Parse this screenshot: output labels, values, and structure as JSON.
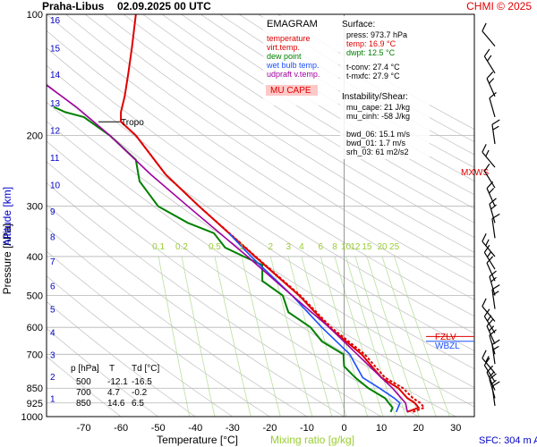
{
  "header": {
    "station": "Praha-Libus",
    "datetime": "02.09.2025 00 UTC",
    "credit": "CHMI © 2025"
  },
  "legend": {
    "title": "EMAGRAM",
    "items": [
      {
        "label": "temperature",
        "color": "#e00000"
      },
      {
        "label": "virt.temp.",
        "color": "#e00000"
      },
      {
        "label": "dew point",
        "color": "#008000"
      },
      {
        "label": "wet bulb temp.",
        "color": "#1e50ff"
      },
      {
        "label": "udpraft v.temp.",
        "color": "#a000a0"
      }
    ],
    "badge": "MU CAPE"
  },
  "surface_info": {
    "title": "Surface:",
    "lines": [
      {
        "text": "press: 973.7 hPa",
        "color": "#000000"
      },
      {
        "text": "temp: 16.9 °C",
        "color": "#e00000"
      },
      {
        "text": "dwpt: 12.5 °C",
        "color": "#008000"
      }
    ],
    "extra": [
      "t-conv: 27.4 °C",
      "t-mxfc: 27.9 °C"
    ]
  },
  "instability": {
    "title": "Instability/Shear:",
    "lines": [
      "mu_cape: 21 J/kg",
      "mu_cinh: -58 J/kg",
      "",
      "bwd_06: 15.1 m/s",
      "bwd_01: 1.7 m/s",
      "srh_03: 61 m2/s2"
    ]
  },
  "levels_table": {
    "headers": [
      "p [hPa]",
      "T",
      "Td [°C]"
    ],
    "rows": [
      [
        "500",
        "-12.1",
        "-16.5"
      ],
      [
        "700",
        "4.7",
        "-0.2"
      ],
      [
        "850",
        "14.6",
        "6.5"
      ]
    ]
  },
  "markers": {
    "tropo": "Tropo",
    "mxws": "MXWS",
    "fzl": "FZLV",
    "wbzl": "WBZL"
  },
  "footer": {
    "sfc": "SFC: 304 m ASL"
  },
  "colors": {
    "temperature": "#e00000",
    "dewpoint": "#008000",
    "wetbulb": "#1e50ff",
    "parcel": "#a000a0",
    "mixing": "#9acd32",
    "altitude": "#0000c8",
    "dry_adiabat": "#c0c0c0"
  },
  "chart_data": {
    "type": "line",
    "ylabel": "Pressure [hPa]",
    "ylabel_alt": "Altitude [km]",
    "xlabel": "Temperature [°C]",
    "xlabel_extra": "Mixing ratio [g/kg]",
    "xlim": [
      -80,
      35
    ],
    "ylim": [
      1000,
      100
    ],
    "y_log": true,
    "x_ticks": [
      -70,
      -60,
      -50,
      -40,
      -30,
      -20,
      -10,
      0,
      10,
      20,
      30
    ],
    "p_ticks": [
      100,
      200,
      300,
      400,
      500,
      600,
      700,
      850,
      925,
      1000
    ],
    "altitude_ticks": [
      {
        "km": 1,
        "p": 900
      },
      {
        "km": 2,
        "p": 795
      },
      {
        "km": 3,
        "p": 701
      },
      {
        "km": 4,
        "p": 616
      },
      {
        "km": 5,
        "p": 540
      },
      {
        "km": 6,
        "p": 472
      },
      {
        "km": 7,
        "p": 411
      },
      {
        "km": 8,
        "p": 357
      },
      {
        "km": 9,
        "p": 308
      },
      {
        "km": 10,
        "p": 265
      },
      {
        "km": 11,
        "p": 227
      },
      {
        "km": 12,
        "p": 194
      },
      {
        "km": 13,
        "p": 166
      },
      {
        "km": 14,
        "p": 141
      },
      {
        "km": 15,
        "p": 121
      },
      {
        "km": 16,
        "p": 103
      }
    ],
    "mixing_ratio_labels": [
      "0.1",
      "0.2",
      "0.5",
      "1",
      "2",
      "3",
      "4",
      "6",
      "8",
      "10",
      "12",
      "15",
      "20",
      "25"
    ],
    "mixing_ratio_values": [
      0.1,
      0.2,
      0.5,
      1,
      2,
      3,
      4,
      6,
      8,
      10,
      12,
      15,
      20,
      25
    ],
    "series": [
      {
        "name": "temperature",
        "key": "temperature",
        "points": [
          [
            973.7,
            16.9
          ],
          [
            950,
            20
          ],
          [
            925,
            19
          ],
          [
            900,
            17
          ],
          [
            850,
            14.6
          ],
          [
            800,
            10
          ],
          [
            700,
            4.7
          ],
          [
            600,
            -4
          ],
          [
            500,
            -12.1
          ],
          [
            400,
            -24
          ],
          [
            300,
            -39
          ],
          [
            250,
            -48
          ],
          [
            200,
            -56
          ],
          [
            185,
            -60
          ],
          [
            175,
            -60
          ],
          [
            160,
            -59
          ],
          [
            140,
            -58
          ],
          [
            120,
            -57
          ],
          [
            100,
            -56
          ]
        ]
      },
      {
        "name": "virt.temp.",
        "key": "temperature",
        "points": [
          [
            973.7,
            18.5
          ],
          [
            950,
            21.5
          ],
          [
            925,
            20.5
          ],
          [
            900,
            18.5
          ],
          [
            850,
            15.8
          ],
          [
            800,
            11
          ],
          [
            700,
            5.5
          ],
          [
            600,
            -3.5
          ],
          [
            500,
            -11.8
          ],
          [
            400,
            -23.8
          ],
          [
            300,
            -39
          ],
          [
            250,
            -48
          ],
          [
            200,
            -56
          ],
          [
            185,
            -60
          ]
        ]
      },
      {
        "name": "dew point",
        "key": "dewpoint",
        "points": [
          [
            973.7,
            12.5
          ],
          [
            950,
            13
          ],
          [
            925,
            12
          ],
          [
            900,
            11
          ],
          [
            850,
            6.5
          ],
          [
            800,
            3
          ],
          [
            750,
            0
          ],
          [
            700,
            -0.2
          ],
          [
            650,
            -6
          ],
          [
            600,
            -9
          ],
          [
            550,
            -15
          ],
          [
            500,
            -16.5
          ],
          [
            460,
            -22
          ],
          [
            420,
            -22
          ],
          [
            400,
            -27
          ],
          [
            380,
            -32
          ],
          [
            350,
            -35
          ],
          [
            330,
            -42
          ],
          [
            300,
            -50
          ],
          [
            260,
            -55
          ],
          [
            230,
            -56
          ],
          [
            200,
            -63
          ],
          [
            180,
            -70
          ],
          [
            175,
            -75
          ],
          [
            170,
            -78
          ]
        ]
      },
      {
        "name": "wet bulb temp.",
        "key": "wetbulb",
        "points": [
          [
            973.7,
            14
          ],
          [
            925,
            15
          ],
          [
            900,
            13.5
          ],
          [
            850,
            9.5
          ],
          [
            800,
            5
          ],
          [
            700,
            1.5
          ],
          [
            600,
            -6
          ],
          [
            500,
            -14
          ],
          [
            400,
            -25
          ],
          [
            350,
            -31
          ]
        ]
      },
      {
        "name": "udpraft v.temp.",
        "key": "parcel",
        "points": [
          [
            973.7,
            17
          ],
          [
            925,
            16.5
          ],
          [
            850,
            13
          ],
          [
            800,
            10
          ],
          [
            700,
            3.5
          ],
          [
            600,
            -4
          ],
          [
            500,
            -14
          ],
          [
            400,
            -26
          ],
          [
            300,
            -42
          ],
          [
            250,
            -52
          ],
          [
            200,
            -63
          ],
          [
            170,
            -72
          ],
          [
            150,
            -80
          ]
        ]
      }
    ]
  }
}
